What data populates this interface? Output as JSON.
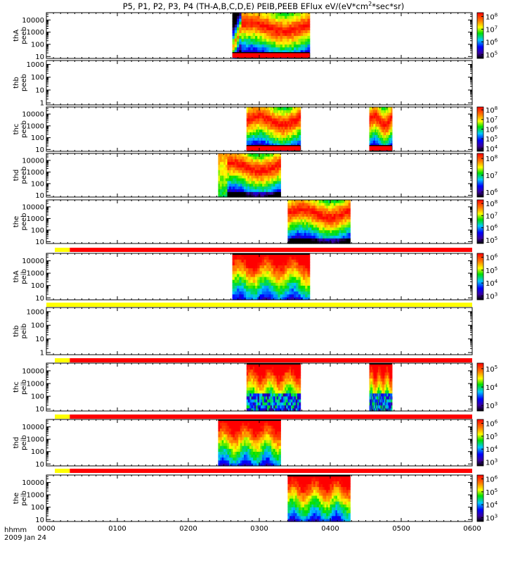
{
  "title": "P5, P1, P2, P3, P4 (TH-A,B,C,D,E) PEIB,PEEB EFlux eV/(eV*cm",
  "title_sup": "2",
  "title_tail": "*sec*sr)",
  "footer": {
    "hhmm": "hhmm",
    "date": "2009 Jan 24"
  },
  "chart_data": {
    "type": "heatmap",
    "x_axis": {
      "unit": "hhmm",
      "range_hours": [
        0,
        6
      ],
      "ticks": [
        {
          "v": 0,
          "label": "0000"
        },
        {
          "v": 1,
          "label": "0100"
        },
        {
          "v": 2,
          "label": "0200"
        },
        {
          "v": 3,
          "label": "0300"
        },
        {
          "v": 4,
          "label": "0400"
        },
        {
          "v": 5,
          "label": "0500"
        },
        {
          "v": 6,
          "label": "0600"
        }
      ]
    },
    "panels": [
      {
        "ylabel": [
          "thA",
          "peeb"
        ],
        "ylim": [
          7,
          40000
        ],
        "yticks": [
          10,
          100,
          1000,
          10000
        ],
        "colorbar": {
          "ticks": [
            {
              "e": 5,
              "label": "10^5"
            },
            {
              "e": 6,
              "label": "10^6"
            },
            {
              "e": 7,
              "label": "10^7"
            },
            {
              "e": 8,
              "label": "10^8"
            }
          ]
        },
        "data_intervals": [
          [
            2.62,
            3.71
          ]
        ],
        "style": "electron",
        "low_red_band": true
      },
      {
        "ylabel": [
          "thb",
          "peeb"
        ],
        "ylim": [
          0.7,
          2000
        ],
        "yticks": [
          1,
          10,
          100,
          1000
        ],
        "colorbar": null,
        "data_intervals": []
      },
      {
        "ylabel": [
          "thc",
          "peeb"
        ],
        "ylim": [
          7,
          40000
        ],
        "yticks": [
          10,
          100,
          1000,
          10000
        ],
        "colorbar": {
          "ticks": [
            {
              "e": 4,
              "label": "10^4"
            },
            {
              "e": 5,
              "label": "10^5"
            },
            {
              "e": 6,
              "label": "10^6"
            },
            {
              "e": 7,
              "label": "10^7"
            },
            {
              "e": 8,
              "label": "10^8"
            }
          ]
        },
        "data_intervals": [
          [
            2.82,
            3.58
          ],
          [
            4.55,
            4.87
          ]
        ],
        "style": "electron2"
      },
      {
        "ylabel": [
          "thd",
          "peeb"
        ],
        "ylim": [
          7,
          40000
        ],
        "yticks": [
          10,
          100,
          1000,
          10000
        ],
        "colorbar": {
          "ticks": [
            {
              "e": 6,
              "label": "10^6"
            },
            {
              "e": 7,
              "label": "10^7"
            },
            {
              "e": 8,
              "label": "10^8"
            }
          ]
        },
        "data_intervals": [
          [
            2.42,
            3.3
          ]
        ],
        "style": "electron3"
      },
      {
        "ylabel": [
          "the",
          "peeb"
        ],
        "ylim": [
          7,
          40000
        ],
        "yticks": [
          10,
          100,
          1000,
          10000
        ],
        "colorbar": {
          "ticks": [
            {
              "e": 5,
              "label": "10^5"
            },
            {
              "e": 6,
              "label": "10^6"
            },
            {
              "e": 7,
              "label": "10^7"
            },
            {
              "e": 8,
              "label": "10^8"
            }
          ]
        },
        "data_intervals": [
          [
            3.4,
            4.28
          ]
        ],
        "style": "electron4"
      },
      {
        "ylabel": [
          "thA",
          "peib"
        ],
        "ylim": [
          7,
          40000
        ],
        "yticks": [
          10,
          100,
          1000,
          10000
        ],
        "colorbar": {
          "ticks": [
            {
              "e": 3,
              "label": "10^3"
            },
            {
              "e": 4,
              "label": "10^4"
            },
            {
              "e": 5,
              "label": "10^5"
            },
            {
              "e": 6,
              "label": "10^6"
            }
          ]
        },
        "data_intervals": [
          [
            2.62,
            3.71
          ]
        ],
        "style": "ion"
      },
      {
        "ylabel": [
          "thb",
          "peib"
        ],
        "ylim": [
          0.7,
          2000
        ],
        "yticks": [
          1,
          10,
          100,
          1000
        ],
        "colorbar": null,
        "data_intervals": []
      },
      {
        "ylabel": [
          "thc",
          "peib"
        ],
        "ylim": [
          7,
          40000
        ],
        "yticks": [
          10,
          100,
          1000,
          10000
        ],
        "colorbar": {
          "ticks": [
            {
              "e": 3,
              "label": "10^3"
            },
            {
              "e": 4,
              "label": "10^4"
            },
            {
              "e": 5,
              "label": "10^5"
            }
          ]
        },
        "data_intervals": [
          [
            2.82,
            3.58
          ],
          [
            4.55,
            4.87
          ]
        ],
        "style": "ion2"
      },
      {
        "ylabel": [
          "thd",
          "peib"
        ],
        "ylim": [
          7,
          40000
        ],
        "yticks": [
          10,
          100,
          1000,
          10000
        ],
        "colorbar": {
          "ticks": [
            {
              "e": 3,
              "label": "10^3"
            },
            {
              "e": 4,
              "label": "10^4"
            },
            {
              "e": 5,
              "label": "10^5"
            },
            {
              "e": 6,
              "label": "10^6"
            }
          ]
        },
        "data_intervals": [
          [
            2.42,
            3.3
          ]
        ],
        "style": "ion3"
      },
      {
        "ylabel": [
          "the",
          "peib"
        ],
        "ylim": [
          7,
          40000
        ],
        "yticks": [
          10,
          100,
          1000,
          10000
        ],
        "colorbar": {
          "ticks": [
            {
              "e": 3,
              "label": "10^3"
            },
            {
              "e": 4,
              "label": "10^4"
            },
            {
              "e": 5,
              "label": "10^5"
            },
            {
              "e": 6,
              "label": "10^6"
            }
          ]
        },
        "data_intervals": [
          [
            3.4,
            4.28
          ]
        ],
        "style": "ion4"
      }
    ],
    "mode_bars": [
      {
        "yellow_hours": [
          0,
          0.33
        ],
        "red_hours": [
          0.33,
          6
        ]
      },
      {
        "yellow_hours": [
          0,
          6
        ],
        "red_hours": null
      },
      {
        "yellow_hours": [
          0,
          0.33
        ],
        "red_hours": [
          0.33,
          6
        ]
      },
      {
        "yellow_hours": [
          0,
          0.33
        ],
        "red_hours": [
          0.33,
          6
        ]
      },
      {
        "yellow_hours": [
          0,
          0.33
        ],
        "red_hours": [
          0.33,
          6
        ]
      }
    ]
  }
}
